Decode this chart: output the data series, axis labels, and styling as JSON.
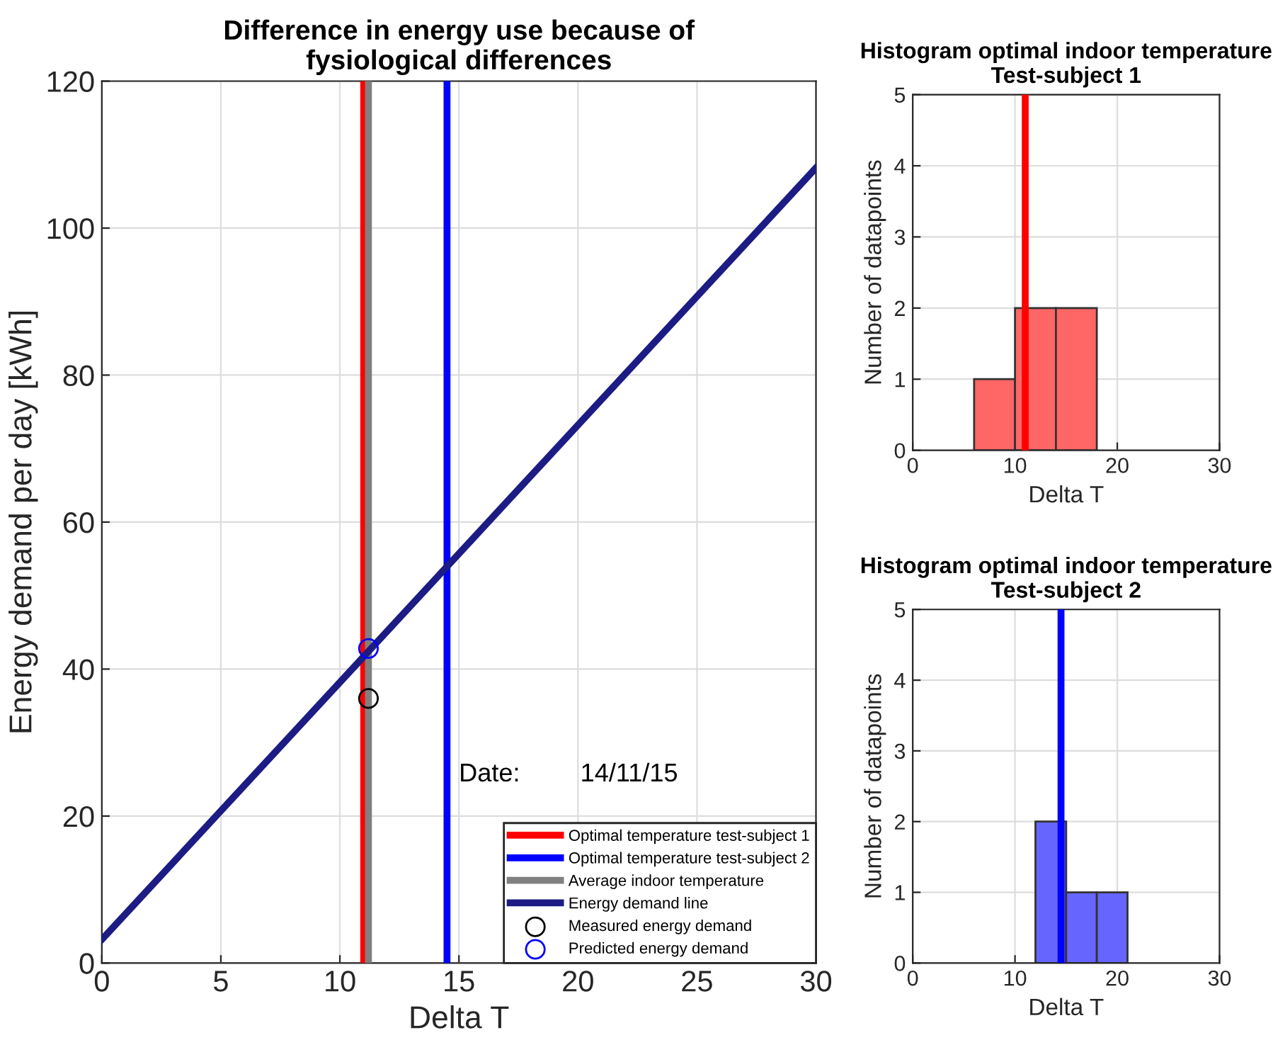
{
  "chart_data": [
    {
      "type": "line",
      "title": "Difference in energy use because of\nfysiological differences",
      "xlabel": "Delta T",
      "ylabel": "Energy demand per day [kWh]",
      "xlim": [
        0,
        30
      ],
      "ylim": [
        0,
        120
      ],
      "xticks": [
        0,
        5,
        10,
        15,
        20,
        25,
        30
      ],
      "yticks": [
        0,
        20,
        40,
        60,
        80,
        100,
        120
      ],
      "grid": true,
      "legend": "bottom right",
      "series": [
        {
          "name": "Optimal temperature test-subject 1",
          "type": "line",
          "color": "#ff0000",
          "x": [
            11.0,
            11.0
          ],
          "values": [
            0,
            120
          ]
        },
        {
          "name": "Optimal temperature test-subject 2",
          "type": "line",
          "color": "#0000ff",
          "x": [
            14.5,
            14.5
          ],
          "values": [
            0,
            120
          ]
        },
        {
          "name": "Average indoor temperature",
          "type": "line",
          "color": "#808080",
          "x": [
            11.2,
            11.2
          ],
          "values": [
            0,
            120
          ]
        },
        {
          "name": "Energy demand line",
          "type": "line",
          "color": "#1c1c84",
          "x": [
            0,
            30
          ],
          "values": [
            3.2,
            108.2
          ],
          "marker": "none"
        },
        {
          "name": "Measured energy demand",
          "type": "scatter",
          "color": "#000000",
          "x": [
            11.2
          ],
          "values": [
            36.0
          ],
          "marker": "circle"
        },
        {
          "name": "Predicted energy demand",
          "type": "scatter",
          "color": "#0000ff",
          "x": [
            11.2
          ],
          "values": [
            42.8
          ],
          "marker": "circle"
        }
      ],
      "annotations": [
        "Date:",
        "14/11/15"
      ]
    },
    {
      "type": "histogram",
      "title": "Histogram optimal indoor temperature\nTest-subject 1",
      "xlabel": "Delta T",
      "ylabel": "Number of datapoints",
      "bins": [
        6,
        10,
        14,
        18
      ],
      "values": [
        1,
        2,
        2
      ],
      "color": "#ff6666",
      "xlim": [
        0,
        30
      ],
      "ylim": [
        0,
        5
      ],
      "xticks": [
        0,
        10,
        20,
        30
      ],
      "yticks": [
        0,
        1,
        2,
        3,
        4,
        5
      ],
      "grid": true,
      "ref_lines": [
        {
          "axis": "x",
          "value": 11.0,
          "color": "#ff0000"
        }
      ]
    },
    {
      "type": "histogram",
      "title": "Histogram optimal indoor temperature\nTest-subject 2",
      "xlabel": "Delta T",
      "ylabel": "Number of datapoints",
      "bins": [
        12,
        15,
        18,
        21
      ],
      "values": [
        2,
        1,
        1
      ],
      "color": "#6666ff",
      "xlim": [
        0,
        30
      ],
      "ylim": [
        0,
        5
      ],
      "xticks": [
        0,
        10,
        20,
        30
      ],
      "yticks": [
        0,
        1,
        2,
        3,
        4,
        5
      ],
      "grid": true,
      "ref_lines": [
        {
          "axis": "x",
          "value": 14.5,
          "color": "#0000ff"
        }
      ]
    }
  ]
}
